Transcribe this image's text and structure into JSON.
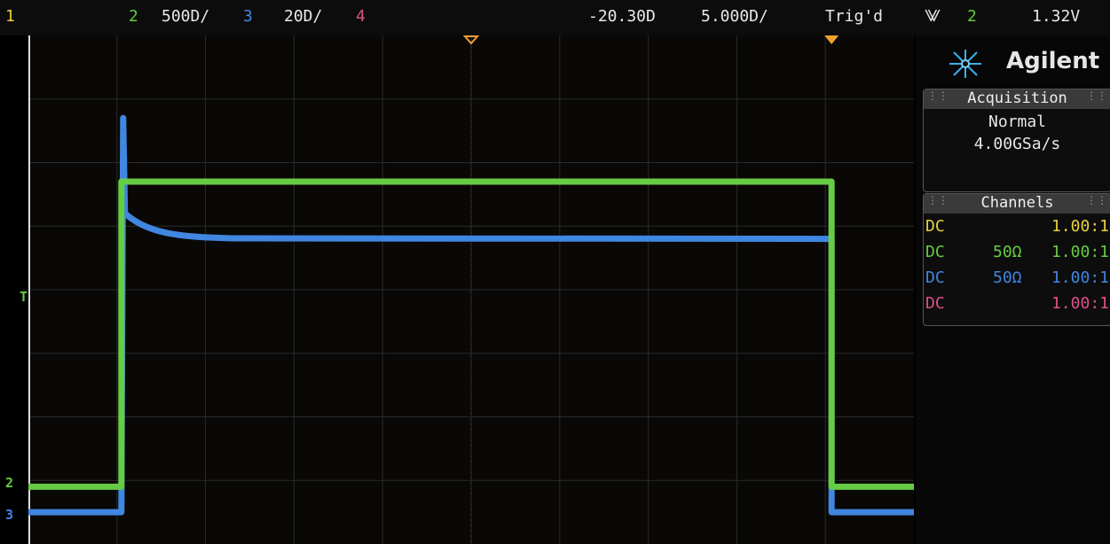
{
  "top_bar": {
    "ch1_label": "1",
    "ch2_label": "2",
    "ch2_scale": "500D/",
    "ch3_label": "3",
    "ch3_scale": "20D/",
    "ch4_label": "4",
    "time_delay": "-20.30D",
    "time_scale": "5.000D/",
    "trigger_status": "Trig'd",
    "trigger_icon": "⨈",
    "trigger_channel": "2",
    "trigger_level": "1.32V"
  },
  "brand": {
    "name": "Agilent",
    "logo": "agilent-spark-icon"
  },
  "acquisition": {
    "title": "Acquisition",
    "mode": "Normal",
    "sample_rate": "4.00GSa/s"
  },
  "channels": {
    "title": "Channels",
    "rows": [
      {
        "coupling": "DC",
        "impedance": "",
        "probe": "1.00:1",
        "color": "#e8d23a"
      },
      {
        "coupling": "DC",
        "impedance": "50Ω",
        "probe": "1.00:1",
        "color": "#66cc44"
      },
      {
        "coupling": "DC",
        "impedance": "50Ω",
        "probe": "1.00:1",
        "color": "#3f87e0"
      },
      {
        "coupling": "DC",
        "impedance": "",
        "probe": "1.00:1",
        "color": "#e0508a"
      }
    ]
  },
  "markers": {
    "trigger_marker": "T",
    "ch2_ground": "2",
    "ch3_ground": "3"
  },
  "colors": {
    "ch1": "#e8d23a",
    "ch2": "#66cc44",
    "ch3": "#3f87e0",
    "ch4": "#e0508a",
    "timebase": "#f0a030"
  },
  "waveform_data": {
    "horizontal_divisions": 10,
    "vertical_divisions": 8,
    "ch2_low_div": 0.9,
    "ch2_high_div": 5.7,
    "ch3_low_div": 0.5,
    "ch3_peak_div": 6.7,
    "ch3_overshoot_div": 5.2,
    "ch3_settled_div": 4.8,
    "pulse_start_div": 1.05,
    "pulse_end_div": 9.07
  }
}
